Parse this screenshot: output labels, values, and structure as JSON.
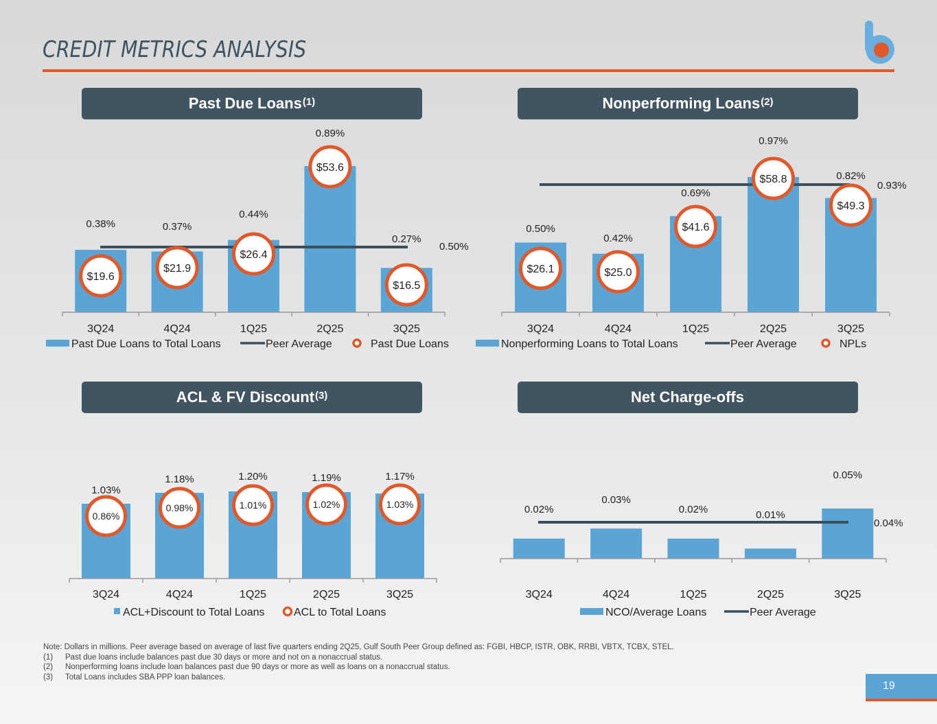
{
  "page": {
    "title": "CREDIT METRICS ANALYSIS",
    "page_number": "19",
    "colors": {
      "accent_orange": "#e0592a",
      "bar_blue": "#5ba4d6",
      "header_slate": "#415462",
      "peer_line": "#3c4e5c"
    }
  },
  "panels": [
    {
      "title": "Past Due Loans",
      "superscript": "(1)"
    },
    {
      "title": "Nonperforming Loans",
      "superscript": "(2)"
    },
    {
      "title": "ACL & FV Discount",
      "superscript": "(3)"
    },
    {
      "title": "Net Charge-offs",
      "superscript": ""
    }
  ],
  "notes": {
    "main": "Note: Dollars in millions. Peer average based on average of last five quarters ending 2Q25, Gulf South Peer Group defined as: FGBI, HBCP, ISTR, OBK, RRBI, VBTX, TCBX, STEL.",
    "footnotes": [
      {
        "num": "(1)",
        "text": "Past due loans include balances past due 30 days or more and not on a nonaccrual status."
      },
      {
        "num": "(2)",
        "text": "Nonperforming loans include loan balances past due 90 days or more as well as loans on a nonaccrual status."
      },
      {
        "num": "(3)",
        "text": "Total Loans includes SBA PPP loan balances."
      }
    ]
  },
  "chart_data": [
    {
      "type": "bar",
      "title": "Past Due Loans(1)",
      "categories": [
        "3Q24",
        "4Q24",
        "1Q25",
        "2Q25",
        "3Q25"
      ],
      "series": [
        {
          "name": "Past Due Loans to Total Loans",
          "kind": "bar",
          "values": [
            0.38,
            0.37,
            0.44,
            0.89,
            0.27
          ],
          "labels": [
            "0.38%",
            "0.37%",
            "0.44%",
            "0.89%",
            "0.27%"
          ]
        },
        {
          "name": "Peer Average",
          "kind": "line",
          "value": 0.5,
          "label": "0.50%"
        },
        {
          "name": "Past Due Loans",
          "kind": "circle-marker",
          "values": [
            19.6,
            21.9,
            26.4,
            53.6,
            16.5
          ],
          "labels": [
            "$19.6",
            "$21.9",
            "$26.4",
            "$53.6",
            "$16.5"
          ]
        }
      ],
      "ylim": [
        0,
        1.0
      ],
      "legend": "bottom",
      "grid": false
    },
    {
      "type": "bar",
      "title": "Nonperforming Loans(2)",
      "categories": [
        "3Q24",
        "4Q24",
        "1Q25",
        "2Q25",
        "3Q25"
      ],
      "series": [
        {
          "name": "Nonperforming Loans to Total Loans",
          "kind": "bar",
          "values": [
            0.5,
            0.42,
            0.69,
            0.97,
            0.82
          ],
          "labels": [
            "0.50%",
            "0.42%",
            "0.69%",
            "0.97%",
            "0.82%"
          ]
        },
        {
          "name": "Peer Average",
          "kind": "line",
          "value": 0.93,
          "label": "0.93%"
        },
        {
          "name": "NPLs",
          "kind": "circle-marker",
          "values": [
            26.1,
            25.0,
            41.6,
            58.8,
            49.3
          ],
          "labels": [
            "$26.1",
            "$25.0",
            "$41.6",
            "$58.8",
            "$49.3"
          ]
        }
      ],
      "ylim": [
        0,
        1.1
      ],
      "legend": "bottom",
      "grid": false
    },
    {
      "type": "bar",
      "title": "ACL & FV Discount(3)",
      "categories": [
        "3Q24",
        "4Q24",
        "1Q25",
        "2Q25",
        "3Q25"
      ],
      "series": [
        {
          "name": "ACL+Discount to Total Loans",
          "kind": "bar",
          "values": [
            1.03,
            1.18,
            1.2,
            1.19,
            1.17
          ],
          "labels": [
            "1.03%",
            "1.18%",
            "1.20%",
            "1.19%",
            "1.17%"
          ]
        },
        {
          "name": "ACL to Total Loans",
          "kind": "circle-marker",
          "values": [
            0.86,
            0.98,
            1.01,
            1.02,
            1.03
          ],
          "labels": [
            "0.86%",
            "0.98%",
            "1.01%",
            "1.02%",
            "1.03%"
          ]
        }
      ],
      "ylim": [
        0,
        1.35
      ],
      "legend": "bottom",
      "grid": false
    },
    {
      "type": "bar",
      "title": "Net Charge-offs",
      "categories": [
        "3Q24",
        "4Q24",
        "1Q25",
        "2Q25",
        "3Q25"
      ],
      "series": [
        {
          "name": "NCO/Average Loans",
          "kind": "bar",
          "values": [
            0.02,
            0.03,
            0.02,
            0.01,
            0.05
          ],
          "labels": [
            "0.02%",
            "0.03%",
            "0.02%",
            "0.01%",
            "0.05%"
          ]
        },
        {
          "name": "Peer Average",
          "kind": "line",
          "value": 0.04,
          "label": "0.04%"
        }
      ],
      "ylim": [
        0,
        0.08
      ],
      "legend": "bottom",
      "grid": false
    }
  ]
}
